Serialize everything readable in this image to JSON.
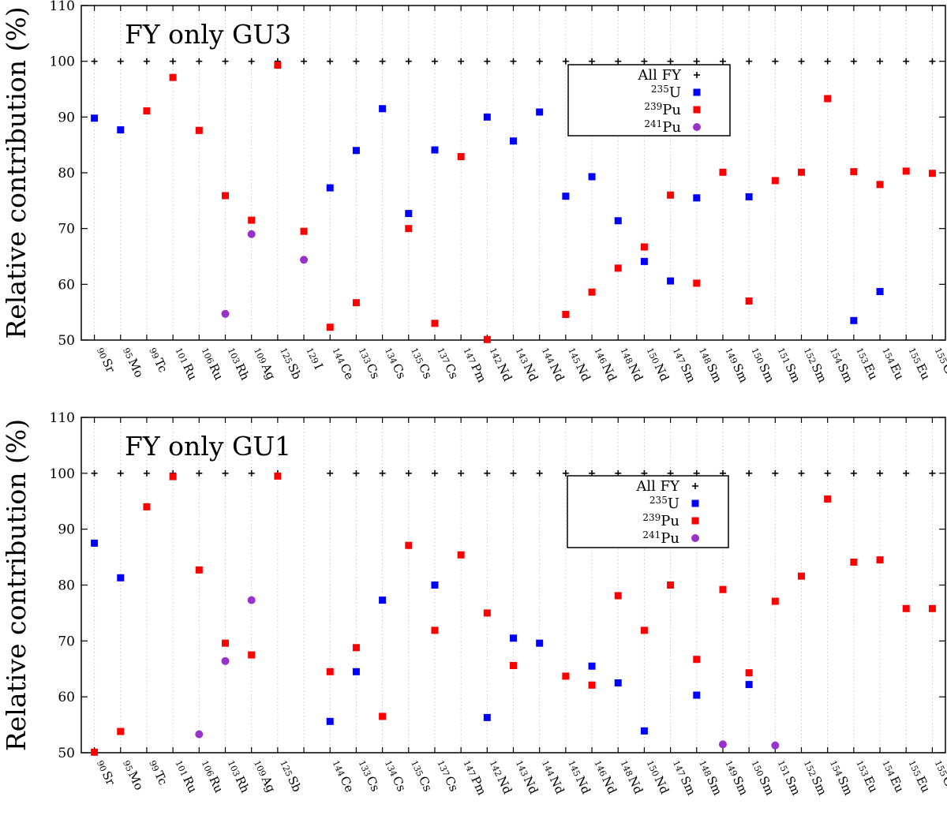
{
  "chart_data": [
    {
      "type": "scatter",
      "title": "FY only GU3",
      "ylabel": "Relative contribution (%)",
      "ylim": [
        50,
        110
      ],
      "yticks": [
        50,
        60,
        70,
        80,
        90,
        100,
        110
      ],
      "grid": "vertical dotted",
      "legend_position": "top-right",
      "legend": [
        {
          "label": "All FY",
          "sup": "",
          "marker": "cross",
          "color": "#000000"
        },
        {
          "label": "U",
          "sup": "235",
          "marker": "square",
          "color": "#0000ff"
        },
        {
          "label": "Pu",
          "sup": "239",
          "marker": "square",
          "color": "#ff0000"
        },
        {
          "label": "Pu",
          "sup": "241",
          "marker": "circle",
          "color": "#9932cc"
        }
      ],
      "categories": [
        {
          "mass": "90",
          "el": "Sr"
        },
        {
          "mass": "95",
          "el": "Mo"
        },
        {
          "mass": "99",
          "el": "Tc"
        },
        {
          "mass": "101",
          "el": "Ru"
        },
        {
          "mass": "106",
          "el": "Ru"
        },
        {
          "mass": "103",
          "el": "Rh"
        },
        {
          "mass": "109",
          "el": "Ag"
        },
        {
          "mass": "125",
          "el": "Sb"
        },
        {
          "mass": "129",
          "el": "I"
        },
        {
          "mass": "144",
          "el": "Ce"
        },
        {
          "mass": "133",
          "el": "Cs"
        },
        {
          "mass": "134",
          "el": "Cs"
        },
        {
          "mass": "135",
          "el": "Cs"
        },
        {
          "mass": "137",
          "el": "Cs"
        },
        {
          "mass": "147",
          "el": "Pm"
        },
        {
          "mass": "142",
          "el": "Nd"
        },
        {
          "mass": "143",
          "el": "Nd"
        },
        {
          "mass": "144",
          "el": "Nd"
        },
        {
          "mass": "145",
          "el": "Nd"
        },
        {
          "mass": "146",
          "el": "Nd"
        },
        {
          "mass": "148",
          "el": "Nd"
        },
        {
          "mass": "150",
          "el": "Nd"
        },
        {
          "mass": "147",
          "el": "Sm"
        },
        {
          "mass": "148",
          "el": "Sm"
        },
        {
          "mass": "149",
          "el": "Sm"
        },
        {
          "mass": "150",
          "el": "Sm"
        },
        {
          "mass": "151",
          "el": "Sm"
        },
        {
          "mass": "152",
          "el": "Sm"
        },
        {
          "mass": "154",
          "el": "Sm"
        },
        {
          "mass": "153",
          "el": "Eu"
        },
        {
          "mass": "154",
          "el": "Eu"
        },
        {
          "mass": "155",
          "el": "Eu"
        },
        {
          "mass": "155",
          "el": "Gd"
        }
      ],
      "series": [
        {
          "name": "All FY",
          "values": [
            100,
            100,
            100,
            100,
            100,
            100,
            100,
            100,
            100,
            100,
            100,
            100,
            100,
            100,
            100,
            100,
            100,
            100,
            100,
            100,
            100,
            100,
            100,
            100,
            100,
            100,
            100,
            100,
            100,
            100,
            100,
            100,
            100
          ]
        },
        {
          "name": "235U",
          "values": [
            89.8,
            87.7,
            null,
            null,
            null,
            null,
            null,
            null,
            null,
            77.3,
            84.0,
            91.5,
            72.7,
            84.1,
            null,
            90.0,
            85.7,
            90.9,
            75.8,
            79.3,
            71.4,
            64.1,
            60.6,
            75.5,
            null,
            75.7,
            null,
            null,
            null,
            53.5,
            58.7,
            null,
            null
          ]
        },
        {
          "name": "239Pu",
          "values": [
            null,
            null,
            91.1,
            97.1,
            87.6,
            75.9,
            71.5,
            99.3,
            69.5,
            52.3,
            56.7,
            null,
            70.0,
            53.0,
            82.9,
            50.1,
            null,
            null,
            54.6,
            58.6,
            62.9,
            66.7,
            76.0,
            60.2,
            80.1,
            57.0,
            78.6,
            80.1,
            93.3,
            80.2,
            77.9,
            80.3,
            79.9
          ]
        },
        {
          "name": "241Pu",
          "values": [
            null,
            null,
            null,
            null,
            null,
            54.7,
            69.0,
            null,
            64.4,
            null,
            null,
            null,
            null,
            null,
            null,
            null,
            null,
            null,
            null,
            null,
            null,
            null,
            null,
            null,
            null,
            null,
            null,
            null,
            null,
            null,
            null,
            null,
            null
          ]
        }
      ]
    },
    {
      "type": "scatter",
      "title": "FY only GU1",
      "ylabel": "Relative contribution (%)",
      "ylim": [
        50,
        110
      ],
      "yticks": [
        50,
        60,
        70,
        80,
        90,
        100,
        110
      ],
      "grid": "vertical dotted",
      "legend_position": "top-right",
      "legend": [
        {
          "label": "All FY",
          "sup": "",
          "marker": "cross",
          "color": "#000000"
        },
        {
          "label": "U",
          "sup": "235",
          "marker": "square",
          "color": "#0000ff"
        },
        {
          "label": "Pu",
          "sup": "239",
          "marker": "square",
          "color": "#ff0000"
        },
        {
          "label": "Pu",
          "sup": "241",
          "marker": "circle",
          "color": "#9932cc"
        }
      ],
      "categories": [
        {
          "mass": "90",
          "el": "Sr"
        },
        {
          "mass": "95",
          "el": "Mo"
        },
        {
          "mass": "99",
          "el": "Tc"
        },
        {
          "mass": "101",
          "el": "Ru"
        },
        {
          "mass": "106",
          "el": "Ru"
        },
        {
          "mass": "103",
          "el": "Rh"
        },
        {
          "mass": "109",
          "el": "Ag"
        },
        {
          "mass": "125",
          "el": "Sb"
        },
        {
          "mass": "",
          "el": ""
        },
        {
          "mass": "144",
          "el": "Ce"
        },
        {
          "mass": "133",
          "el": "Cs"
        },
        {
          "mass": "134",
          "el": "Cs"
        },
        {
          "mass": "135",
          "el": "Cs"
        },
        {
          "mass": "137",
          "el": "Cs"
        },
        {
          "mass": "147",
          "el": "Pm"
        },
        {
          "mass": "142",
          "el": "Nd"
        },
        {
          "mass": "143",
          "el": "Nd"
        },
        {
          "mass": "144",
          "el": "Nd"
        },
        {
          "mass": "145",
          "el": "Nd"
        },
        {
          "mass": "146",
          "el": "Nd"
        },
        {
          "mass": "148",
          "el": "Nd"
        },
        {
          "mass": "150",
          "el": "Nd"
        },
        {
          "mass": "147",
          "el": "Sm"
        },
        {
          "mass": "148",
          "el": "Sm"
        },
        {
          "mass": "149",
          "el": "Sm"
        },
        {
          "mass": "150",
          "el": "Sm"
        },
        {
          "mass": "151",
          "el": "Sm"
        },
        {
          "mass": "152",
          "el": "Sm"
        },
        {
          "mass": "154",
          "el": "Sm"
        },
        {
          "mass": "153",
          "el": "Eu"
        },
        {
          "mass": "154",
          "el": "Eu"
        },
        {
          "mass": "155",
          "el": "Eu"
        },
        {
          "mass": "155",
          "el": "Gd"
        }
      ],
      "series": [
        {
          "name": "All FY",
          "values": [
            100,
            100,
            100,
            100,
            100,
            100,
            100,
            100,
            null,
            100,
            100,
            100,
            100,
            100,
            100,
            100,
            100,
            100,
            100,
            100,
            100,
            100,
            100,
            100,
            100,
            100,
            100,
            100,
            100,
            100,
            100,
            100,
            100
          ]
        },
        {
          "name": "235U",
          "values": [
            87.5,
            81.3,
            null,
            null,
            null,
            null,
            null,
            null,
            null,
            55.6,
            64.5,
            77.3,
            null,
            80.0,
            null,
            56.3,
            70.5,
            69.6,
            null,
            65.5,
            62.5,
            53.9,
            null,
            60.3,
            null,
            62.2,
            null,
            null,
            null,
            null,
            null,
            null,
            null
          ]
        },
        {
          "name": "239Pu",
          "values": [
            50.1,
            53.8,
            94.0,
            99.4,
            82.7,
            69.6,
            67.5,
            99.5,
            null,
            64.5,
            68.8,
            56.5,
            87.1,
            71.9,
            85.4,
            75.0,
            65.6,
            null,
            63.7,
            62.1,
            78.1,
            71.9,
            80.0,
            66.7,
            79.2,
            64.3,
            77.1,
            81.6,
            95.4,
            84.1,
            84.5,
            75.8,
            75.8
          ]
        },
        {
          "name": "241Pu",
          "values": [
            null,
            null,
            null,
            null,
            53.3,
            66.4,
            77.3,
            null,
            null,
            null,
            null,
            null,
            null,
            null,
            null,
            null,
            null,
            null,
            null,
            null,
            null,
            null,
            null,
            null,
            51.5,
            null,
            51.3,
            null,
            null,
            null,
            null,
            null,
            null
          ]
        }
      ]
    }
  ]
}
